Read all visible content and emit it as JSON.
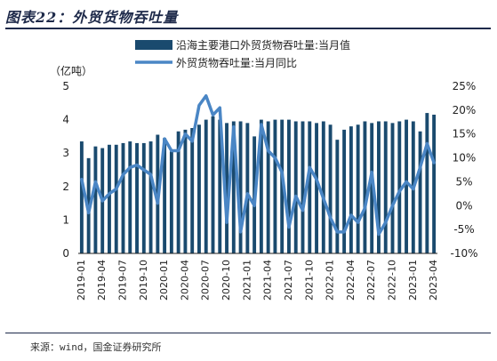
{
  "title": "图表22：外贸货物吞吐量",
  "source": "来源：wind，国金证券研究所",
  "colors": {
    "bar": "#1a4a6e",
    "line": "#4a86c5",
    "title": "#1e2a4a"
  },
  "chart_data": {
    "type": "bar+line",
    "left_axis": {
      "unit_label": "（亿吨）",
      "ylim": [
        0,
        5
      ],
      "ticks": [
        "0",
        "1",
        "2",
        "3",
        "4",
        "5"
      ]
    },
    "right_axis": {
      "ylim": [
        -10,
        25
      ],
      "ticks": [
        "-10%",
        "-5%",
        "0%",
        "5%",
        "10%",
        "15%",
        "20%",
        "25%"
      ]
    },
    "x_tick_labels": [
      "2019-01",
      "2019-04",
      "2019-07",
      "2019-10",
      "2020-01",
      "2020-04",
      "2020-07",
      "2020-10",
      "2021-01",
      "2021-04",
      "2021-07",
      "2021-10",
      "2022-01",
      "2022-04",
      "2022-07",
      "2022-10",
      "2023-01",
      "2023-04"
    ],
    "x": [
      "2019-01",
      "2019-02",
      "2019-03",
      "2019-04",
      "2019-05",
      "2019-06",
      "2019-07",
      "2019-08",
      "2019-09",
      "2019-10",
      "2019-11",
      "2019-12",
      "2020-01",
      "2020-02",
      "2020-03",
      "2020-04",
      "2020-05",
      "2020-06",
      "2020-07",
      "2020-08",
      "2020-09",
      "2020-10",
      "2020-11",
      "2020-12",
      "2021-01",
      "2021-02",
      "2021-03",
      "2021-04",
      "2021-05",
      "2021-06",
      "2021-07",
      "2021-08",
      "2021-09",
      "2021-10",
      "2021-11",
      "2021-12",
      "2022-01",
      "2022-02",
      "2022-03",
      "2022-04",
      "2022-05",
      "2022-06",
      "2022-07",
      "2022-08",
      "2022-09",
      "2022-10",
      "2022-11",
      "2022-12",
      "2023-01",
      "2023-02",
      "2023-03",
      "2023-04"
    ],
    "series": [
      {
        "name": "沿海主要港口外贸货物吞吐量:当月值",
        "type": "bar",
        "axis": "left",
        "values": [
          3.35,
          2.85,
          3.2,
          3.15,
          3.25,
          3.25,
          3.3,
          3.35,
          3.3,
          3.3,
          3.35,
          3.55,
          3.45,
          3.05,
          3.65,
          3.7,
          3.75,
          3.85,
          4.0,
          4.1,
          4.0,
          3.9,
          3.95,
          3.95,
          3.9,
          3.5,
          4.0,
          3.95,
          4.0,
          4.0,
          4.0,
          3.95,
          3.95,
          3.95,
          3.9,
          3.95,
          3.85,
          3.4,
          3.7,
          3.8,
          3.85,
          3.95,
          3.9,
          3.95,
          3.95,
          3.9,
          3.95,
          4.0,
          3.95,
          3.65,
          4.2,
          4.15
        ]
      },
      {
        "name": "外贸货物吞吐量:当月同比",
        "type": "line",
        "axis": "right",
        "values": [
          5.5,
          -1.5,
          5.0,
          1.0,
          2.5,
          3.5,
          6.5,
          8.0,
          8.5,
          7.5,
          6.5,
          0.5,
          14.0,
          11.5,
          11.5,
          15.0,
          13.5,
          21.0,
          23.0,
          19.0,
          20.5,
          -3.5,
          16.5,
          -5.5,
          2.5,
          0.0,
          17.0,
          11.5,
          10.0,
          7.0,
          -4.5,
          2.0,
          -1.0,
          8.0,
          5.5,
          1.5,
          -2.5,
          -5.5,
          -5.5,
          -2.0,
          -3.5,
          -0.5,
          7.0,
          -6.0,
          -3.5,
          0.0,
          3.0,
          5.0,
          3.5,
          8.0,
          13.0,
          9.0
        ]
      }
    ],
    "legend": "top-right"
  }
}
